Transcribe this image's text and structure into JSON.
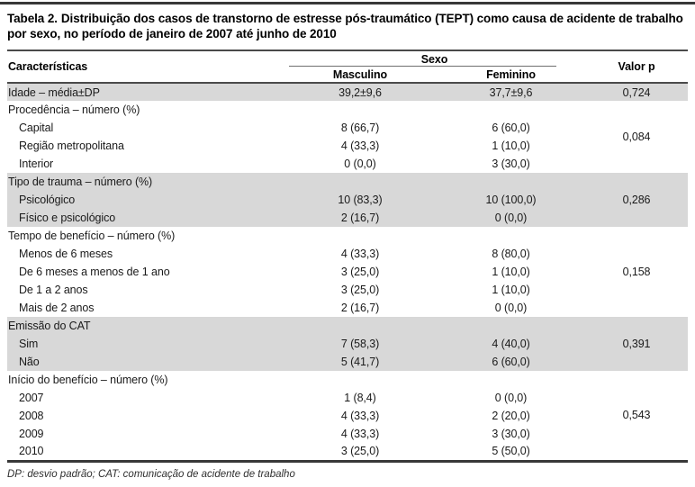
{
  "page": {
    "colors": {
      "shade": "#d8d8d8",
      "rule_dark": "#383838",
      "rule_mid": "#4a4a4a",
      "text": "#1a1a1a"
    }
  },
  "table": {
    "title_label": "Tabela 2.",
    "title_text": "Distribuição dos casos de transtorno de estresse pós-traumático (TEPT) como causa de acidente de trabalho por sexo, no período de janeiro de 2007 até junho de 2010",
    "header": {
      "characteristics": "Características",
      "sex": "Sexo",
      "male": "Masculino",
      "female": "Feminino",
      "p_value": "Valor p"
    },
    "rows": [
      {
        "label": "Idade – média±DP",
        "indent": false,
        "shaded": true,
        "male": "39,2±9,6",
        "female": "37,7±9,6",
        "p": "0,724",
        "p_span": 1
      },
      {
        "label": "Procedência – número (%)",
        "indent": false,
        "shaded": false,
        "male": "",
        "female": "",
        "p": "0,084",
        "p_span": 4
      },
      {
        "label": "Capital",
        "indent": true,
        "shaded": false,
        "male": "8 (66,7)",
        "female": "6 (60,0)"
      },
      {
        "label": "Região metropolitana",
        "indent": true,
        "shaded": false,
        "male": "4 (33,3)",
        "female": "1 (10,0)"
      },
      {
        "label": "Interior",
        "indent": true,
        "shaded": false,
        "male": "0 (0,0)",
        "female": "3 (30,0)"
      },
      {
        "label": "Tipo de trauma – número (%)",
        "indent": false,
        "shaded": true,
        "male": "",
        "female": "",
        "p": "0,286",
        "p_span": 3
      },
      {
        "label": "Psicológico",
        "indent": true,
        "shaded": true,
        "male": "10 (83,3)",
        "female": "10 (100,0)"
      },
      {
        "label": "Físico e psicológico",
        "indent": true,
        "shaded": true,
        "male": "2 (16,7)",
        "female": "0 (0,0)"
      },
      {
        "label": "Tempo de benefício – número (%)",
        "indent": false,
        "shaded": false,
        "male": "",
        "female": "",
        "p": "0,158",
        "p_span": 5
      },
      {
        "label": "Menos de 6 meses",
        "indent": true,
        "shaded": false,
        "male": "4 (33,3)",
        "female": "8 (80,0)"
      },
      {
        "label": "De 6 meses a menos de 1 ano",
        "indent": true,
        "shaded": false,
        "male": "3 (25,0)",
        "female": "1 (10,0)"
      },
      {
        "label": "De 1 a 2 anos",
        "indent": true,
        "shaded": false,
        "male": "3 (25,0)",
        "female": "1 (10,0)"
      },
      {
        "label": "Mais de 2 anos",
        "indent": true,
        "shaded": false,
        "male": "2 (16,7)",
        "female": "0 (0,0)"
      },
      {
        "label": "Emissão do CAT",
        "indent": false,
        "shaded": true,
        "male": "",
        "female": "",
        "p": "0,391",
        "p_span": 3
      },
      {
        "label": "Sim",
        "indent": true,
        "shaded": true,
        "male": "7 (58,3)",
        "female": "4 (40,0)"
      },
      {
        "label": "Não",
        "indent": true,
        "shaded": true,
        "male": "5 (41,7)",
        "female": "6 (60,0)"
      },
      {
        "label": "Início do benefício – número (%)",
        "indent": false,
        "shaded": false,
        "male": "",
        "female": "",
        "p": "0,543",
        "p_span": 5
      },
      {
        "label": "2007",
        "indent": true,
        "shaded": false,
        "male": "1 (8,4)",
        "female": "0 (0,0)"
      },
      {
        "label": "2008",
        "indent": true,
        "shaded": false,
        "male": "4 (33,3)",
        "female": "2 (20,0)"
      },
      {
        "label": "2009",
        "indent": true,
        "shaded": false,
        "male": "4 (33,3)",
        "female": "3 (30,0)"
      },
      {
        "label": "2010",
        "indent": true,
        "shaded": false,
        "male": "3 (25,0)",
        "female": "5 (50,0)"
      }
    ],
    "footnote": "DP: desvio padrão; CAT: comunicação de acidente de trabalho"
  }
}
